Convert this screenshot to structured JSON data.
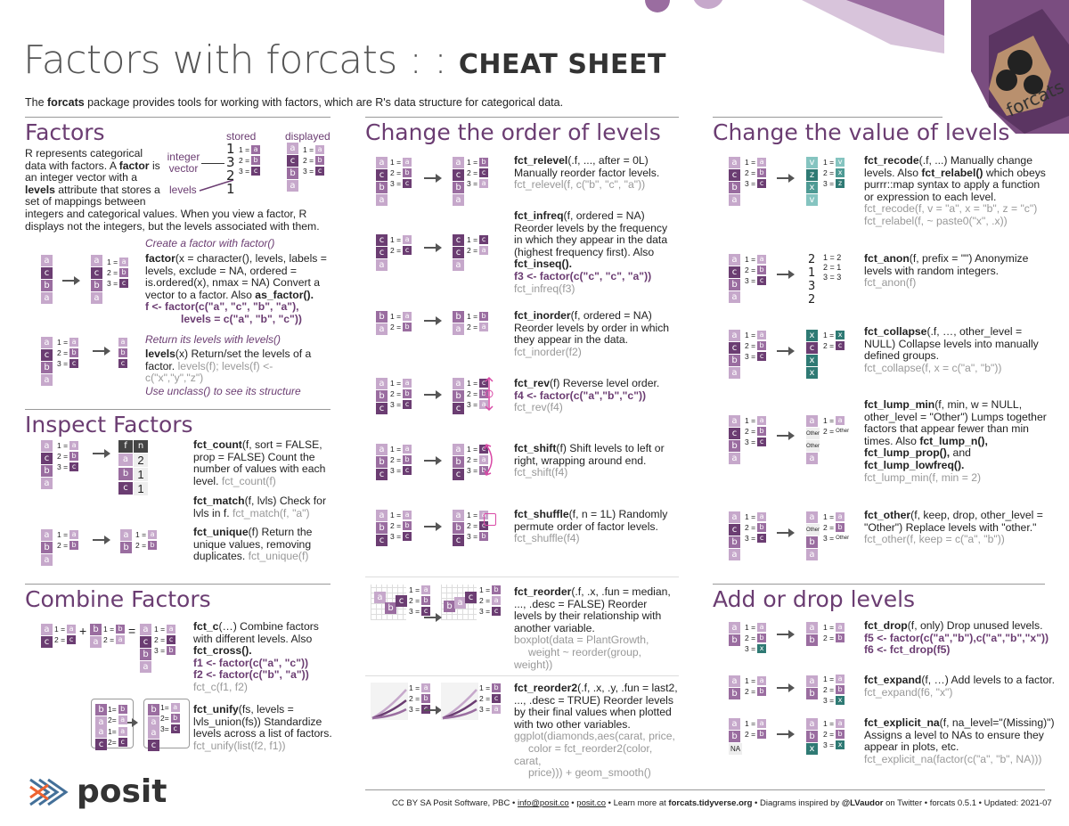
{
  "header": {
    "title_main": "Factors with forcats : : ",
    "title_bold": "CHEAT SHEET",
    "hex_label": "forcats",
    "intro_pre": "The ",
    "intro_pkg": "forcats",
    "intro_post": " package provides tools for working with factors, which are R's data structure for categorical data."
  },
  "factors": {
    "title": "Factors",
    "desc": "R represents categorical data with factors. A factor is an integer vector with a levels attribute that stores a set of mappings between integers and categorical values. When you view a factor, R displays not the integers, but the levels associated with them.",
    "stored": "stored",
    "displayed": "displayed",
    "integer_vector": "integer vector",
    "levels": "levels",
    "create_title": "Create a factor with factor()",
    "create_fn": "factor",
    "create_text": "(x = character(), levels, labels = levels, exclude = NA, ordered = is.ordered(x), nmax = NA) Convert a vector to a factor. Also ",
    "as_factor": "as_factor().",
    "create_code1": "f <- factor(c(\"a\", \"c\", \"b\", \"a\"),",
    "create_code2": "levels = c(\"a\", \"b\", \"c\"))",
    "levels_title": "Return its levels with levels()",
    "levels_fn": "levels",
    "levels_text": "(x) Return/set the levels of a factor. ",
    "levels_ex": "levels(f); levels(f) <- c(\"x\",\"y\",\"z\")",
    "unclass": "Use unclass() to see its structure"
  },
  "inspect": {
    "title": "Inspect Factors",
    "count_fn": "fct_count",
    "count_text": "(f, sort = FALSE, prop = FALSE) Count the number of values with each level. ",
    "count_ex": "fct_count(f)",
    "match_fn": "fct_match",
    "match_text": "(f, lvls) Check for lvls in f. ",
    "match_ex": "fct_match(f, \"a\")",
    "unique_fn": "fct_unique",
    "unique_text": "(f) Return the unique values, removing duplicates. ",
    "unique_ex": "fct_unique(f)",
    "col_f": "f",
    "col_n": "n"
  },
  "combine": {
    "title": "Combine Factors",
    "c_fn": "fct_c",
    "c_text": "(…) Combine factors with different levels. Also ",
    "cross": "fct_cross().",
    "c_code1": "f1 <- factor(c(\"a\", \"c\"))",
    "c_code2": "f2 <- factor(c(\"b\", \"a\"))",
    "c_ex": "fct_c(f1, f2)",
    "unify_fn": "fct_unify",
    "unify_text": "(fs, levels = lvls_union(fs)) Standardize levels across a list of factors. ",
    "unify_ex": "fct_unify(list(f2, f1))"
  },
  "order": {
    "title": "Change the order of levels",
    "relevel_fn": "fct_relevel",
    "relevel_text": "(.f, ..., after = 0L) Manually reorder factor levels.",
    "relevel_ex": "fct_relevel(f, c(\"b\", \"c\", \"a\"))",
    "infreq_fn": "fct_infreq",
    "infreq_text": "(f, ordered = NA) Reorder levels by the frequency in which they appear in the data (highest frequency first). Also ",
    "inseq": "fct_inseq().",
    "infreq_code": "f3 <- factor(c(\"c\", \"c\", \"a\"))",
    "infreq_ex": "fct_infreq(f3)",
    "inorder_fn": "fct_inorder",
    "inorder_text": "(f, ordered = NA) Reorder levels by order in which they appear in the data.",
    "inorder_ex": "fct_inorder(f2)",
    "rev_fn": "fct_rev",
    "rev_text": "(f) Reverse level order.",
    "rev_code": "f4 <- factor(c(\"a\",\"b\",\"c\"))",
    "rev_ex": "fct_rev(f4)",
    "shift_fn": "fct_shift",
    "shift_text": "(f) Shift levels to left or right, wrapping around end.",
    "shift_ex": "fct_shift(f4)",
    "shuffle_fn": "fct_shuffle",
    "shuffle_text": "(f, n = 1L) Randomly permute order of factor levels.",
    "shuffle_ex": "fct_shuffle(f4)",
    "reorder_fn": "fct_reorder",
    "reorder_text": "(.f, .x, .fun = median, ..., .desc = FALSE) Reorder levels by their relationship with another variable.",
    "reorder_ex1": "boxplot(data = PlantGrowth,",
    "reorder_ex2": "weight ~ reorder(group, weight))",
    "reorder2_fn": "fct_reorder2",
    "reorder2_text": "(.f, .x, .y, .fun = last2, ..., .desc = TRUE) Reorder levels by their final values when plotted with two other variables.",
    "reorder2_ex1": "ggplot(diamonds,aes(carat, price,",
    "reorder2_ex2": "color = fct_reorder2(color, carat,",
    "reorder2_ex3": "price))) + geom_smooth()"
  },
  "value": {
    "title": "Change the value of levels",
    "recode_fn": "fct_recode",
    "recode_text": "(.f, ...) Manually change levels. Also ",
    "relabel": "fct_relabel()",
    "recode_text2": " which obeys purrr::map syntax to apply a function or expression to each level.",
    "recode_ex1": "fct_recode(f, v = \"a\", x = \"b\", z = \"c\")",
    "recode_ex2": "fct_relabel(f, ~ paste0(\"x\", .x))",
    "anon_fn": "fct_anon",
    "anon_text": "(f, prefix = \"\") Anonymize levels with random integers.",
    "anon_ex": "fct_anon(f)",
    "collapse_fn": "fct_collapse",
    "collapse_text": "(.f, …, other_level = NULL) Collapse levels into manually defined groups.",
    "collapse_ex": "fct_collapse(f, x = c(\"a\", \"b\"))",
    "lump_fn": "fct_lump_min",
    "lump_text": "(f, min, w = NULL, other_level = \"Other\") Lumps together factors that appear fewer than min times. Also ",
    "lump_n": "fct_lump_n(),",
    "lump_prop": "fct_lump_prop(),",
    "lump_and": " and ",
    "lump_low": "fct_lump_lowfreq().",
    "lump_ex": "fct_lump_min(f, min = 2)",
    "other_fn": "fct_other",
    "other_text": "(f, keep, drop, other_level = \"Other\") Replace levels with \"other.\"",
    "other_ex": "fct_other(f, keep = c(\"a\", \"b\"))",
    "other_label": "Other"
  },
  "adddrop": {
    "title": "Add or drop levels",
    "drop_fn": "fct_drop",
    "drop_text": "(f, only) Drop unused levels.",
    "drop_code1": "f5 <- factor(c(\"a\",\"b\"),c(\"a\",\"b\",\"x\"))",
    "drop_code2": "f6 <- fct_drop(f5)",
    "expand_fn": "fct_expand",
    "expand_text": "(f, …) Add levels to a factor.",
    "expand_ex": "fct_expand(f6, \"x\")",
    "na_fn": "fct_explicit_na",
    "na_text": "(f, na_level=\"(Missing)\") Assigns a level to NAs to ensure they appear in plots, etc.",
    "na_ex": "fct_explicit_na(factor(c(\"a\", \"b\", NA)))",
    "na_label": "NA"
  },
  "footer": {
    "license": "CC BY SA Posit Software, PBC  •  ",
    "email": "info@posit.co",
    "sep1": "  •  ",
    "site": "posit.co",
    "learn": "  •  Learn more at ",
    "tidy": "forcats.tidyverse.org",
    "diagrams": "  •  Diagrams inspired by ",
    "handle": "@LVaudor",
    "rest": " on Twitter  •  forcats  0.5.1  •  Updated:  2021-07",
    "logo": "posit"
  },
  "colors": {
    "dark": "#6b3d72",
    "mid": "#9a6da0",
    "light": "#c6a8cb",
    "teal": "#85c4c0"
  }
}
